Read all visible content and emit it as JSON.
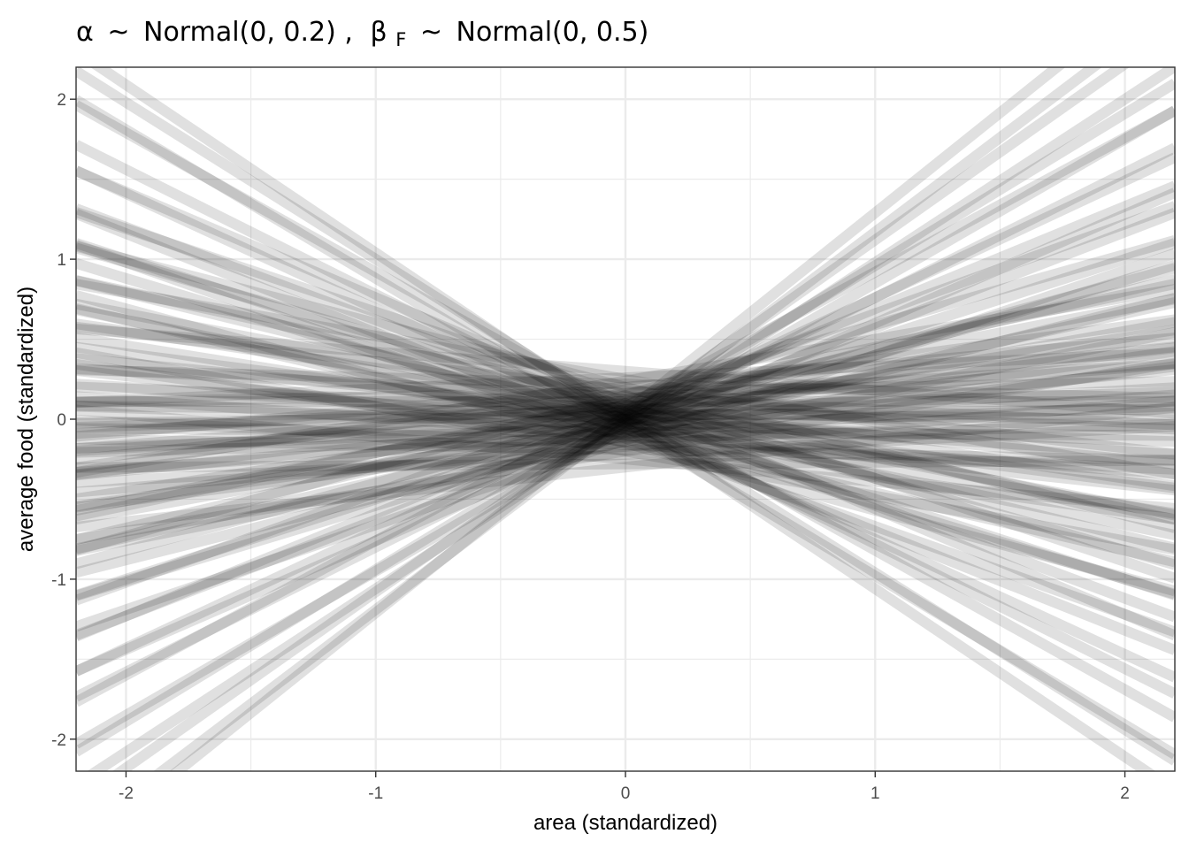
{
  "chart_data": {
    "type": "line",
    "title": {
      "alpha_symbol": "α",
      "tilde": "~",
      "alpha_prior": "Normal(0, 0.2)",
      "separator": ",",
      "beta_symbol": "β",
      "beta_subscript": "F",
      "beta_prior": "Normal(0, 0.5)"
    },
    "xlabel": "area (standardized)",
    "ylabel": "average food (standardized)",
    "xlim": [
      -2.2,
      2.2
    ],
    "ylim": [
      -2.2,
      2.2
    ],
    "x_ticks": [
      -2,
      -1,
      0,
      1,
      2
    ],
    "x_tick_labels": [
      "-2",
      "-1",
      "0",
      "1",
      "2"
    ],
    "y_ticks": [
      -2,
      -1,
      0,
      1,
      2
    ],
    "y_tick_labels": [
      "-2",
      "-1",
      "0",
      "1",
      "2"
    ],
    "grid": true,
    "line_color": "#000000",
    "line_opacity": 0.12,
    "series_description_note": "",
    "series": [
      {
        "alpha": -0.01,
        "beta": -1.05
      },
      {
        "alpha": 0.02,
        "beta": -0.98
      },
      {
        "alpha": -0.05,
        "beta": -0.93
      },
      {
        "alpha": 0.05,
        "beta": -0.87
      },
      {
        "alpha": 0.0,
        "beta": -0.78
      },
      {
        "alpha": -0.03,
        "beta": -0.72
      },
      {
        "alpha": 0.1,
        "beta": -0.66
      },
      {
        "alpha": -0.08,
        "beta": -0.62
      },
      {
        "alpha": 0.04,
        "beta": -0.58
      },
      {
        "alpha": -0.12,
        "beta": -0.55
      },
      {
        "alpha": 0.15,
        "beta": -0.52
      },
      {
        "alpha": 0.0,
        "beta": -0.5
      },
      {
        "alpha": -0.06,
        "beta": -0.47
      },
      {
        "alpha": 0.08,
        "beta": -0.45
      },
      {
        "alpha": -0.15,
        "beta": -0.42
      },
      {
        "alpha": 0.2,
        "beta": -0.4
      },
      {
        "alpha": 0.03,
        "beta": -0.38
      },
      {
        "alpha": -0.1,
        "beta": -0.36
      },
      {
        "alpha": 0.12,
        "beta": -0.34
      },
      {
        "alpha": -0.02,
        "beta": -0.32
      },
      {
        "alpha": 0.06,
        "beta": -0.3
      },
      {
        "alpha": -0.2,
        "beta": -0.28
      },
      {
        "alpha": 0.25,
        "beta": -0.27
      },
      {
        "alpha": -0.04,
        "beta": -0.25
      },
      {
        "alpha": 0.09,
        "beta": -0.23
      },
      {
        "alpha": -0.14,
        "beta": -0.22
      },
      {
        "alpha": 0.01,
        "beta": -0.2
      },
      {
        "alpha": 0.18,
        "beta": -0.18
      },
      {
        "alpha": -0.07,
        "beta": -0.17
      },
      {
        "alpha": 0.05,
        "beta": -0.15
      },
      {
        "alpha": -0.25,
        "beta": -0.14
      },
      {
        "alpha": 0.3,
        "beta": -0.12
      },
      {
        "alpha": -0.1,
        "beta": -0.11
      },
      {
        "alpha": 0.0,
        "beta": -0.1
      },
      {
        "alpha": 0.14,
        "beta": -0.08
      },
      {
        "alpha": -0.16,
        "beta": -0.07
      },
      {
        "alpha": 0.07,
        "beta": -0.06
      },
      {
        "alpha": -0.03,
        "beta": -0.05
      },
      {
        "alpha": 0.22,
        "beta": -0.04
      },
      {
        "alpha": -0.19,
        "beta": -0.03
      },
      {
        "alpha": 0.04,
        "beta": -0.02
      },
      {
        "alpha": -0.08,
        "beta": -0.01
      },
      {
        "alpha": 0.11,
        "beta": 0.0
      },
      {
        "alpha": -0.28,
        "beta": 0.01
      },
      {
        "alpha": 0.02,
        "beta": 0.02
      },
      {
        "alpha": 0.17,
        "beta": 0.03
      },
      {
        "alpha": -0.12,
        "beta": 0.04
      },
      {
        "alpha": 0.06,
        "beta": 0.05
      },
      {
        "alpha": -0.05,
        "beta": 0.06
      },
      {
        "alpha": 0.26,
        "beta": 0.07
      },
      {
        "alpha": -0.22,
        "beta": 0.08
      },
      {
        "alpha": 0.0,
        "beta": 0.09
      },
      {
        "alpha": 0.13,
        "beta": 0.1
      },
      {
        "alpha": -0.09,
        "beta": 0.11
      },
      {
        "alpha": 0.08,
        "beta": 0.12
      },
      {
        "alpha": -0.17,
        "beta": 0.13
      },
      {
        "alpha": 0.2,
        "beta": 0.14
      },
      {
        "alpha": -0.02,
        "beta": 0.15
      },
      {
        "alpha": 0.1,
        "beta": 0.16
      },
      {
        "alpha": -0.3,
        "beta": 0.17
      },
      {
        "alpha": 0.05,
        "beta": 0.18
      },
      {
        "alpha": -0.11,
        "beta": 0.2
      },
      {
        "alpha": 0.16,
        "beta": 0.21
      },
      {
        "alpha": -0.06,
        "beta": 0.22
      },
      {
        "alpha": 0.03,
        "beta": 0.24
      },
      {
        "alpha": -0.2,
        "beta": 0.25
      },
      {
        "alpha": 0.24,
        "beta": 0.26
      },
      {
        "alpha": -0.01,
        "beta": 0.28
      },
      {
        "alpha": 0.09,
        "beta": 0.3
      },
      {
        "alpha": -0.14,
        "beta": 0.31
      },
      {
        "alpha": 0.12,
        "beta": 0.33
      },
      {
        "alpha": -0.04,
        "beta": 0.35
      },
      {
        "alpha": 0.06,
        "beta": 0.37
      },
      {
        "alpha": -0.1,
        "beta": 0.39
      },
      {
        "alpha": 0.02,
        "beta": 0.42
      },
      {
        "alpha": 0.15,
        "beta": 0.44
      },
      {
        "alpha": -0.07,
        "beta": 0.47
      },
      {
        "alpha": 0.0,
        "beta": 0.5
      },
      {
        "alpha": -0.13,
        "beta": 0.53
      },
      {
        "alpha": 0.1,
        "beta": 0.56
      },
      {
        "alpha": -0.03,
        "beta": 0.6
      },
      {
        "alpha": 0.05,
        "beta": 0.64
      },
      {
        "alpha": -0.08,
        "beta": 0.68
      },
      {
        "alpha": 0.03,
        "beta": 0.73
      },
      {
        "alpha": -0.02,
        "beta": 0.78
      },
      {
        "alpha": 0.08,
        "beta": 0.84
      },
      {
        "alpha": -0.05,
        "beta": 0.9
      },
      {
        "alpha": 0.01,
        "beta": 0.95
      },
      {
        "alpha": -0.04,
        "beta": 1.02
      },
      {
        "alpha": 0.02,
        "beta": 1.1
      },
      {
        "alpha": -0.01,
        "beta": 1.18
      },
      {
        "alpha": 0.04,
        "beta": 1.25
      }
    ]
  }
}
